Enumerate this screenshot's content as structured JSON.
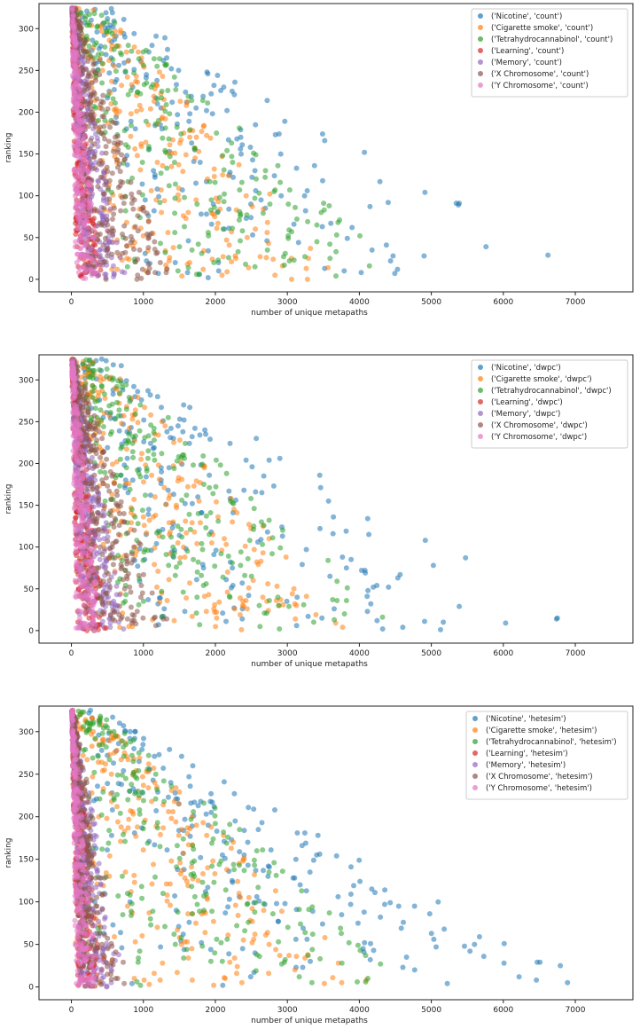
{
  "chart_data": [
    {
      "type": "scatter",
      "title": "",
      "xlabel": "number of unique metapaths",
      "ylabel": "ranking",
      "xlim": [
        -450,
        7800
      ],
      "ylim": [
        -15,
        330
      ],
      "xticks": [
        0,
        1000,
        2000,
        3000,
        4000,
        5000,
        6000,
        7000
      ],
      "yticks": [
        0,
        50,
        100,
        150,
        200,
        250,
        300
      ],
      "legend_position": "top-right",
      "series": [
        {
          "name": "('Nicotine', 'count')",
          "color": "#1f77b4",
          "gen": {
            "seed": 11,
            "n": 200,
            "xmax": 7400,
            "xmin": 500,
            "spread": 0.55,
            "curve": 1.0
          }
        },
        {
          "name": "('Cigarette smoke', 'count')",
          "color": "#ff7f0e",
          "gen": {
            "seed": 23,
            "n": 230,
            "xmax": 3700,
            "xmin": 150,
            "spread": 0.45,
            "curve": 0.8
          }
        },
        {
          "name": "('Tetrahydrocannabinol', 'count')",
          "color": "#2ca02c",
          "gen": {
            "seed": 37,
            "n": 230,
            "xmax": 4700,
            "xmin": 200,
            "spread": 0.45,
            "curve": 0.9
          }
        },
        {
          "name": "('Learning', 'count')",
          "color": "#d62728",
          "gen": {
            "seed": 41,
            "n": 300,
            "xmax": 420,
            "xmin": 20,
            "spread": 0.35,
            "curve": 1.0
          }
        },
        {
          "name": "('Memory', 'count')",
          "color": "#9467bd",
          "gen": {
            "seed": 53,
            "n": 300,
            "xmax": 760,
            "xmin": 30,
            "spread": 0.35,
            "curve": 1.0
          }
        },
        {
          "name": "('X Chromosome', 'count')",
          "color": "#8c564b",
          "gen": {
            "seed": 67,
            "n": 300,
            "xmax": 1400,
            "xmin": 40,
            "spread": 0.4,
            "curve": 1.0
          }
        },
        {
          "name": "('Y Chromosome', 'count')",
          "color": "#e377c2",
          "gen": {
            "seed": 79,
            "n": 300,
            "xmax": 380,
            "xmin": 15,
            "spread": 0.35,
            "curve": 1.0
          }
        }
      ]
    },
    {
      "type": "scatter",
      "title": "",
      "xlabel": "number of unique metapaths",
      "ylabel": "ranking",
      "xlim": [
        -450,
        7800
      ],
      "ylim": [
        -15,
        330
      ],
      "xticks": [
        0,
        1000,
        2000,
        3000,
        4000,
        5000,
        6000,
        7000
      ],
      "yticks": [
        0,
        50,
        100,
        150,
        200,
        250,
        300
      ],
      "legend_position": "top-right",
      "series": [
        {
          "name": "('Nicotine', 'dwpc')",
          "color": "#1f77b4",
          "gen": {
            "seed": 111,
            "n": 210,
            "xmax": 7400,
            "xmin": 500,
            "spread": 0.6,
            "curve": 1.0
          }
        },
        {
          "name": "('Cigarette smoke', 'dwpc')",
          "color": "#ff7f0e",
          "gen": {
            "seed": 123,
            "n": 240,
            "xmax": 3900,
            "xmin": 150,
            "spread": 0.5,
            "curve": 0.8
          }
        },
        {
          "name": "('Tetrahydrocannabinol', 'dwpc')",
          "color": "#2ca02c",
          "gen": {
            "seed": 137,
            "n": 240,
            "xmax": 4700,
            "xmin": 200,
            "spread": 0.5,
            "curve": 0.9
          }
        },
        {
          "name": "('Learning', 'dwpc')",
          "color": "#d62728",
          "gen": {
            "seed": 141,
            "n": 300,
            "xmax": 500,
            "xmin": 20,
            "spread": 0.4,
            "curve": 1.0
          }
        },
        {
          "name": "('Memory', 'dwpc')",
          "color": "#9467bd",
          "gen": {
            "seed": 153,
            "n": 300,
            "xmax": 780,
            "xmin": 30,
            "spread": 0.4,
            "curve": 1.0
          }
        },
        {
          "name": "('X Chromosome', 'dwpc')",
          "color": "#8c564b",
          "gen": {
            "seed": 167,
            "n": 300,
            "xmax": 1400,
            "xmin": 40,
            "spread": 0.45,
            "curve": 1.0
          }
        },
        {
          "name": "('Y Chromosome', 'dwpc')",
          "color": "#e377c2",
          "gen": {
            "seed": 179,
            "n": 300,
            "xmax": 420,
            "xmin": 15,
            "spread": 0.4,
            "curve": 1.0
          }
        }
      ]
    },
    {
      "type": "scatter",
      "title": "",
      "xlabel": "number of unique metapaths",
      "ylabel": "ranking",
      "xlim": [
        -450,
        7800
      ],
      "ylim": [
        -15,
        330
      ],
      "xticks": [
        0,
        1000,
        2000,
        3000,
        4000,
        5000,
        6000,
        7000
      ],
      "yticks": [
        0,
        50,
        100,
        150,
        200,
        250,
        300
      ],
      "legend_position": "top-right",
      "series": [
        {
          "name": "('Nicotine', 'hetesim')",
          "color": "#1f77b4",
          "gen": {
            "seed": 211,
            "n": 230,
            "xmax": 7400,
            "xmin": 300,
            "spread": 1.6,
            "curve": 1.0
          }
        },
        {
          "name": "('Cigarette smoke', 'hetesim')",
          "color": "#ff7f0e",
          "gen": {
            "seed": 223,
            "n": 240,
            "xmax": 4200,
            "xmin": 150,
            "spread": 1.4,
            "curve": 0.9
          }
        },
        {
          "name": "('Tetrahydrocannabinol', 'hetesim')",
          "color": "#2ca02c",
          "gen": {
            "seed": 237,
            "n": 240,
            "xmax": 4700,
            "xmin": 200,
            "spread": 1.4,
            "curve": 0.9
          }
        },
        {
          "name": "('Learning', 'hetesim')",
          "color": "#d62728",
          "gen": {
            "seed": 241,
            "n": 300,
            "xmax": 500,
            "xmin": 20,
            "spread": 0.8,
            "curve": 1.0
          }
        },
        {
          "name": "('Memory', 'hetesim')",
          "color": "#9467bd",
          "gen": {
            "seed": 253,
            "n": 300,
            "xmax": 780,
            "xmin": 30,
            "spread": 0.8,
            "curve": 1.0
          }
        },
        {
          "name": "('X Chromosome', 'hetesim')",
          "color": "#8c564b",
          "gen": {
            "seed": 267,
            "n": 300,
            "xmax": 800,
            "xmin": 40,
            "spread": 0.8,
            "curve": 1.0
          }
        },
        {
          "name": "('Y Chromosome', 'hetesim')",
          "color": "#e377c2",
          "gen": {
            "seed": 279,
            "n": 300,
            "xmax": 420,
            "xmin": 15,
            "spread": 0.8,
            "curve": 1.0
          }
        }
      ]
    }
  ]
}
